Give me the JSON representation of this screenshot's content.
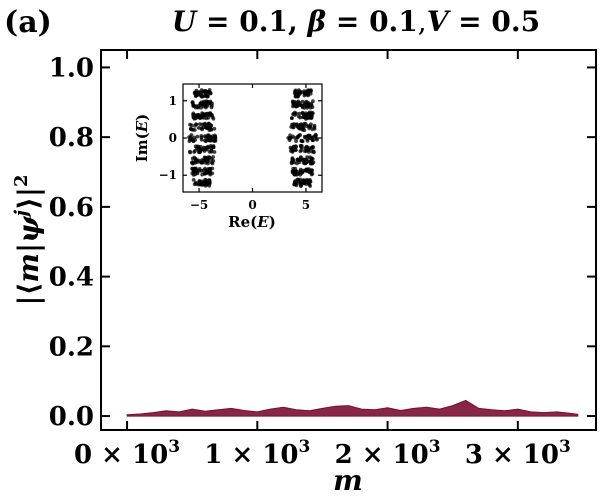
{
  "panel_label": "(a)",
  "chart_data": [
    {
      "type": "area",
      "title": {
        "U": "0.1",
        "beta": "0.1",
        "V": "0.5"
      },
      "xlabel": "m",
      "ylabel": "|⟨m|ψ^j⟩|²",
      "xlim": [
        -200,
        3600
      ],
      "ylim": [
        -0.04,
        1.05
      ],
      "x_ticks": [
        {
          "value": 0,
          "mantissa": "0",
          "exp": "3"
        },
        {
          "value": 1000,
          "mantissa": "1",
          "exp": "3"
        },
        {
          "value": 2000,
          "mantissa": "2",
          "exp": "3"
        },
        {
          "value": 3000,
          "mantissa": "3",
          "exp": "3"
        }
      ],
      "y_ticks": [
        {
          "value": 0.0,
          "label": "0.0"
        },
        {
          "value": 0.2,
          "label": "0.2"
        },
        {
          "value": 0.4,
          "label": "0.4"
        },
        {
          "value": 0.6,
          "label": "0.6"
        },
        {
          "value": 0.8,
          "label": "0.8"
        },
        {
          "value": 1.0,
          "label": "1.0"
        }
      ],
      "grid": false,
      "series_color": "#7a0f33",
      "series": [
        {
          "x": [
            0,
            100,
            200,
            300,
            400,
            500,
            600,
            700,
            800,
            900,
            1000,
            1100,
            1200,
            1300,
            1400,
            1500,
            1600,
            1700,
            1800,
            1900,
            2000,
            2100,
            2200,
            2300,
            2400,
            2500,
            2600,
            2700,
            2800,
            2900,
            3000,
            3100,
            3200,
            3300,
            3400,
            3460
          ],
          "y": [
            0.004,
            0.006,
            0.01,
            0.015,
            0.012,
            0.02,
            0.014,
            0.018,
            0.022,
            0.016,
            0.012,
            0.02,
            0.025,
            0.018,
            0.015,
            0.022,
            0.028,
            0.03,
            0.02,
            0.018,
            0.024,
            0.016,
            0.022,
            0.025,
            0.02,
            0.03,
            0.045,
            0.022,
            0.018,
            0.015,
            0.02,
            0.012,
            0.01,
            0.012,
            0.008,
            0.005
          ]
        }
      ]
    },
    {
      "type": "scatter",
      "title": "",
      "xlabel": "Re(E)",
      "ylabel": "Im(E)",
      "xlim": [
        -6.5,
        6.5
      ],
      "ylim": [
        -1.45,
        1.45
      ],
      "x_ticks": [
        {
          "value": -5,
          "label": "−5"
        },
        {
          "value": 0,
          "label": "0"
        },
        {
          "value": 5,
          "label": "5"
        }
      ],
      "y_ticks": [
        {
          "value": -1,
          "label": "−1"
        },
        {
          "value": 0,
          "label": "0"
        },
        {
          "value": 1,
          "label": "1"
        }
      ],
      "grid": false,
      "point_color": "#000000",
      "clusters": [
        {
          "center_re": -4.7,
          "im_levels": [
            -1.2,
            -0.9,
            -0.6,
            -0.3,
            0,
            0.3,
            0.6,
            0.9,
            1.2
          ],
          "half_widths": [
            0.8,
            0.95,
            1.05,
            1.15,
            1.35,
            1.15,
            1.05,
            0.95,
            0.8
          ]
        },
        {
          "center_re": 4.7,
          "im_levels": [
            -1.2,
            -0.9,
            -0.6,
            -0.3,
            0,
            0.3,
            0.6,
            0.9,
            1.2
          ],
          "half_widths": [
            0.8,
            0.95,
            1.05,
            1.15,
            1.35,
            1.15,
            1.05,
            0.95,
            0.8
          ]
        }
      ]
    }
  ]
}
